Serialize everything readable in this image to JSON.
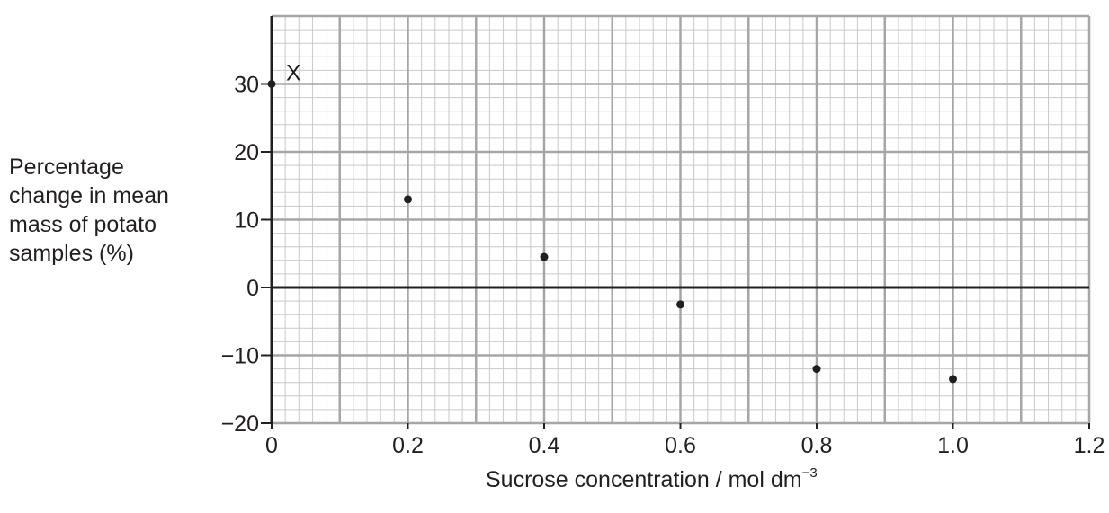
{
  "chart_data": {
    "type": "scatter",
    "title": "",
    "ylabel_lines": [
      "Percentage",
      "change in mean",
      "mass of potato",
      "samples (%)"
    ],
    "xlabel": "Sucrose concentration / mol dm",
    "xlabel_unit_exponent": "−3",
    "xlim": [
      0,
      1.2
    ],
    "ylim": [
      -20,
      40
    ],
    "x_ticks": [
      "0",
      "0.2",
      "0.4",
      "0.6",
      "0.8",
      "1.0",
      "1.2"
    ],
    "x_tick_values": [
      0,
      0.2,
      0.4,
      0.6,
      0.8,
      1.0,
      1.2
    ],
    "y_ticks": [
      "30",
      "20",
      "10",
      "0",
      "−10",
      "−20"
    ],
    "y_tick_values": [
      30,
      20,
      10,
      0,
      -10,
      -20
    ],
    "grid": true,
    "points": [
      {
        "x": 0,
        "y": 30
      },
      {
        "x": 0.2,
        "y": 13
      },
      {
        "x": 0.4,
        "y": 4.5
      },
      {
        "x": 0.6,
        "y": -2.5
      },
      {
        "x": 0.8,
        "y": -12
      },
      {
        "x": 1.0,
        "y": -13.5
      }
    ],
    "annotation": {
      "text": "X",
      "x": 0,
      "y": 30
    }
  }
}
